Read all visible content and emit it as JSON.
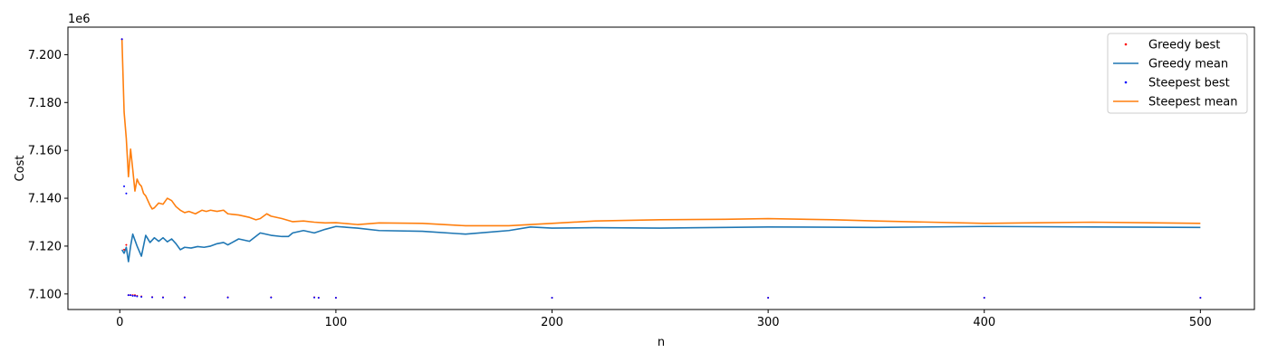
{
  "chart_data": {
    "type": "line",
    "xlabel": "n",
    "ylabel": "Cost",
    "y_offset_label": "1e6",
    "xlim": [
      -24,
      525
    ],
    "ylim": [
      7.0935,
      7.2115
    ],
    "x_ticks": [
      0,
      100,
      200,
      300,
      400,
      500
    ],
    "y_ticks": [
      7.1,
      7.12,
      7.14,
      7.16,
      7.18,
      7.2
    ],
    "y_tick_labels": [
      "7.100",
      "7.120",
      "7.140",
      "7.160",
      "7.180",
      "7.200"
    ],
    "grid": false,
    "legend_position": "top-right",
    "colors": {
      "greedy_best": "#ff0000",
      "greedy_mean": "#1f77b4",
      "steepest_best": "#0000ff",
      "steepest_mean": "#ff7f0e"
    },
    "series": [
      {
        "name": "Greedy best",
        "kind": "points",
        "x": [
          1,
          2,
          3,
          4,
          5,
          6,
          7,
          8,
          10,
          15,
          20,
          30,
          50,
          70,
          90,
          92,
          100,
          200,
          300,
          400,
          500
        ],
        "values": [
          7.2065,
          7.1185,
          7.1205,
          7.0995,
          7.0995,
          7.0995,
          7.0995,
          7.0992,
          7.099,
          7.0987,
          7.0986,
          7.0986,
          7.0986,
          7.0986,
          7.0986,
          7.0984,
          7.0984,
          7.0984,
          7.0984,
          7.0984,
          7.0984
        ]
      },
      {
        "name": "Greedy mean",
        "kind": "line",
        "x": [
          1,
          2,
          3,
          4,
          5,
          6,
          8,
          10,
          12,
          14,
          16,
          18,
          20,
          22,
          24,
          26,
          28,
          30,
          33,
          36,
          39,
          42,
          45,
          48,
          50,
          55,
          60,
          65,
          70,
          75,
          78,
          80,
          85,
          90,
          95,
          100,
          110,
          120,
          140,
          160,
          180,
          190,
          200,
          220,
          250,
          280,
          300,
          350,
          400,
          450,
          500
        ],
        "values": [
          7.1185,
          7.117,
          7.1195,
          7.1135,
          7.12,
          7.125,
          7.12,
          7.1158,
          7.1245,
          7.1215,
          7.1235,
          7.122,
          7.1235,
          7.1218,
          7.123,
          7.121,
          7.1185,
          7.1195,
          7.1192,
          7.1198,
          7.1195,
          7.12,
          7.121,
          7.1215,
          7.1205,
          7.123,
          7.122,
          7.1255,
          7.1245,
          7.124,
          7.124,
          7.1255,
          7.1265,
          7.1255,
          7.127,
          7.1282,
          7.1275,
          7.1265,
          7.1262,
          7.125,
          7.1265,
          7.128,
          7.1275,
          7.1277,
          7.1275,
          7.1278,
          7.128,
          7.1278,
          7.1282,
          7.128,
          7.1278
        ]
      },
      {
        "name": "Steepest best",
        "kind": "points",
        "x": [
          1,
          2,
          3,
          4,
          5,
          6,
          7,
          8,
          10,
          15,
          20,
          30,
          50,
          70,
          90,
          92,
          100,
          200,
          300,
          400,
          500
        ],
        "values": [
          7.2065,
          7.145,
          7.142,
          7.0995,
          7.0995,
          7.0992,
          7.0992,
          7.099,
          7.0988,
          7.0986,
          7.0985,
          7.0985,
          7.0985,
          7.0985,
          7.0985,
          7.0984,
          7.0984,
          7.0984,
          7.0984,
          7.0984,
          7.0984
        ]
      },
      {
        "name": "Steepest mean",
        "kind": "line",
        "x": [
          1,
          2,
          3,
          4,
          5,
          6,
          7,
          8,
          9,
          10,
          11,
          12,
          14,
          15,
          16,
          18,
          20,
          22,
          24,
          26,
          28,
          30,
          32,
          35,
          38,
          40,
          42,
          45,
          48,
          50,
          55,
          60,
          63,
          65,
          68,
          70,
          75,
          80,
          85,
          90,
          95,
          100,
          110,
          120,
          140,
          160,
          180,
          200,
          220,
          250,
          280,
          300,
          330,
          350,
          400,
          450,
          500
        ],
        "values": [
          7.2065,
          7.176,
          7.165,
          7.149,
          7.1605,
          7.152,
          7.143,
          7.148,
          7.146,
          7.145,
          7.142,
          7.141,
          7.137,
          7.1355,
          7.136,
          7.138,
          7.1375,
          7.14,
          7.139,
          7.1365,
          7.135,
          7.134,
          7.1345,
          7.1335,
          7.135,
          7.1345,
          7.135,
          7.1345,
          7.135,
          7.1335,
          7.133,
          7.132,
          7.131,
          7.1315,
          7.1335,
          7.1325,
          7.1315,
          7.1302,
          7.1305,
          7.13,
          7.1297,
          7.1298,
          7.129,
          7.1297,
          7.1295,
          7.1285,
          7.1285,
          7.1295,
          7.1305,
          7.131,
          7.1312,
          7.1315,
          7.131,
          7.1305,
          7.1295,
          7.13,
          7.1295
        ]
      }
    ]
  }
}
